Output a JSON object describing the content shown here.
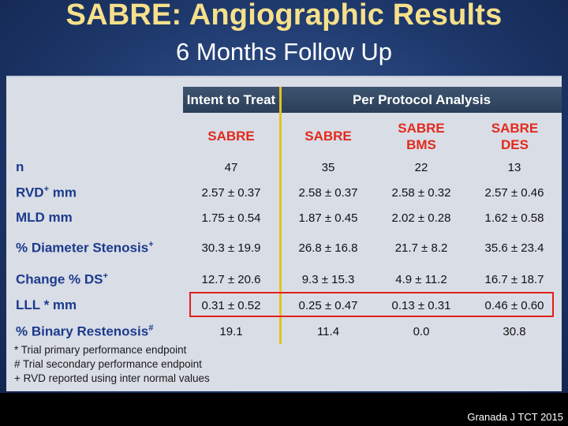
{
  "title": "SABRE: Angiographic Results",
  "subtitle": "6 Months Follow Up",
  "table": {
    "group_headers": [
      "Intent to Treat",
      "Per Protocol Analysis"
    ],
    "columns": [
      {
        "line1": "SABRE",
        "line2": ""
      },
      {
        "line1": "SABRE",
        "line2": ""
      },
      {
        "line1": "SABRE",
        "line2": "BMS"
      },
      {
        "line1": "SABRE",
        "line2": "DES"
      }
    ],
    "rows": [
      {
        "label": "n",
        "sup": "",
        "values": [
          "47",
          "35",
          "22",
          "13"
        ]
      },
      {
        "label": "RVD",
        "label_rest": " mm",
        "sup": "+",
        "values": [
          "2.57 ± 0.37",
          "2.58 ± 0.37",
          "2.58 ± 0.32",
          "2.57 ± 0.46"
        ]
      },
      {
        "label": "MLD mm",
        "sup": "",
        "values": [
          "1.75 ± 0.54",
          "1.87 ± 0.45",
          "2.02 ± 0.28",
          "1.62 ± 0.58"
        ]
      },
      {
        "label": "% Diameter Stenosis",
        "sup": "+",
        "values": [
          "30.3 ± 19.9",
          "26.8 ± 16.8",
          "21.7 ± 8.2",
          "35.6 ± 23.4"
        ]
      },
      {
        "label": "Change % DS",
        "sup": "+",
        "values": [
          "12.7 ± 20.6",
          "9.3 ± 15.3",
          "4.9 ± 11.2",
          "16.7 ± 18.7"
        ]
      },
      {
        "label": "LLL *  mm",
        "sup": "",
        "values": [
          "0.31 ± 0.52",
          "0.25 ± 0.47",
          "0.13 ± 0.31",
          "0.46 ± 0.60"
        ]
      },
      {
        "label": "% Binary Restenosis",
        "sup": "#",
        "values": [
          "19.1",
          "11.4",
          "0.0",
          "30.8"
        ]
      }
    ]
  },
  "footnotes": [
    "* Trial primary performance endpoint",
    "#  Trial secondary performance endpoint",
    "+ RVD reported using inter normal values"
  ],
  "credit": "Granada J TCT 2015",
  "colors": {
    "title": "#f7e08a",
    "header_band": "#2f4562",
    "column_header": "#e22a1c",
    "row_label": "#1c3a8c",
    "divider": "#e6c11e",
    "highlight_box": "#e0201a"
  }
}
